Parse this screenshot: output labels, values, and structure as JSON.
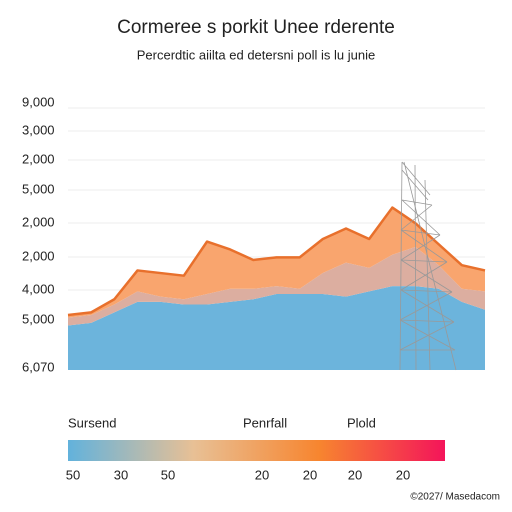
{
  "chart_data": {
    "type": "stacked-area",
    "title": "Cormeree s porkit Unee rderente",
    "subtitle": "Percerdtic aiilta ed detersni poll is lu junie",
    "y_axis_labels": [
      "9,000",
      "3,000",
      "2,000",
      "5,000",
      "2,000",
      "2,000",
      "4,000",
      "5,000",
      "6,070"
    ],
    "categories": [
      null,
      null,
      null,
      null,
      null,
      null,
      null,
      null,
      null,
      null,
      null,
      null,
      null,
      null,
      null,
      null,
      null,
      null,
      null
    ],
    "ylim": [
      0,
      100
    ],
    "series": [
      {
        "name": "Sursend",
        "color": "#6cb4dc",
        "values": [
          17,
          18,
          22,
          26,
          26,
          25,
          25,
          26,
          27,
          29,
          29,
          29,
          28,
          30,
          32,
          32,
          31,
          26,
          23
        ]
      },
      {
        "name": "Penrfall",
        "color": "#dcaea0",
        "values": [
          3,
          3,
          3,
          4,
          2,
          2,
          4,
          5,
          4,
          3,
          2,
          8,
          13,
          9,
          12,
          15,
          9,
          5,
          7
        ]
      },
      {
        "name": "Plold",
        "color": "#f9a56e",
        "line_color": "#e8702c",
        "values": [
          1,
          1,
          2,
          8,
          9,
          9,
          20,
          15,
          11,
          11,
          12,
          13,
          13,
          11,
          18,
          9,
          8,
          9,
          8
        ]
      }
    ],
    "colorbar_colors": [
      "#62b2dc",
      "#e8c095",
      "#f7852f",
      "#f4145a"
    ],
    "colorbar_labels": [
      50,
      30,
      50,
      20,
      20,
      20,
      20
    ],
    "footer": "©2027/ Masedacom"
  }
}
